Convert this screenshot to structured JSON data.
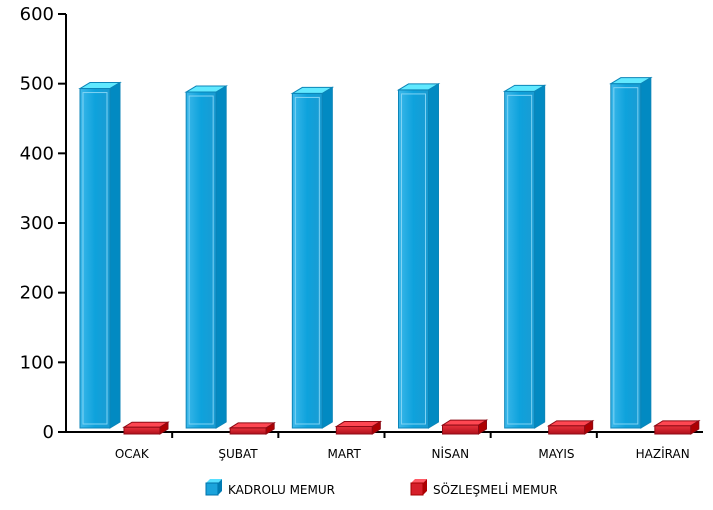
{
  "chart_data": {
    "type": "bar",
    "title": "",
    "xlabel": "",
    "ylabel": "",
    "ylim": [
      0,
      600
    ],
    "yticks": [
      0,
      100,
      200,
      300,
      400,
      500,
      600
    ],
    "grid": false,
    "legend_position": "bottom",
    "style": "3d-columns",
    "categories": [
      "OCAK",
      "ŞUBAT",
      "MART",
      "NİSAN",
      "MAYIS",
      "HAZİRAN"
    ],
    "series": [
      {
        "name": "KADROLU MEMUR",
        "color": "#1ba3db",
        "values": [
          493,
          488,
          486,
          491,
          489,
          500
        ]
      },
      {
        "name": "SÖZLEŞMELİ MEMUR",
        "color": "#d61f2a",
        "values": [
          4,
          3,
          5,
          7,
          6,
          6
        ]
      }
    ]
  }
}
